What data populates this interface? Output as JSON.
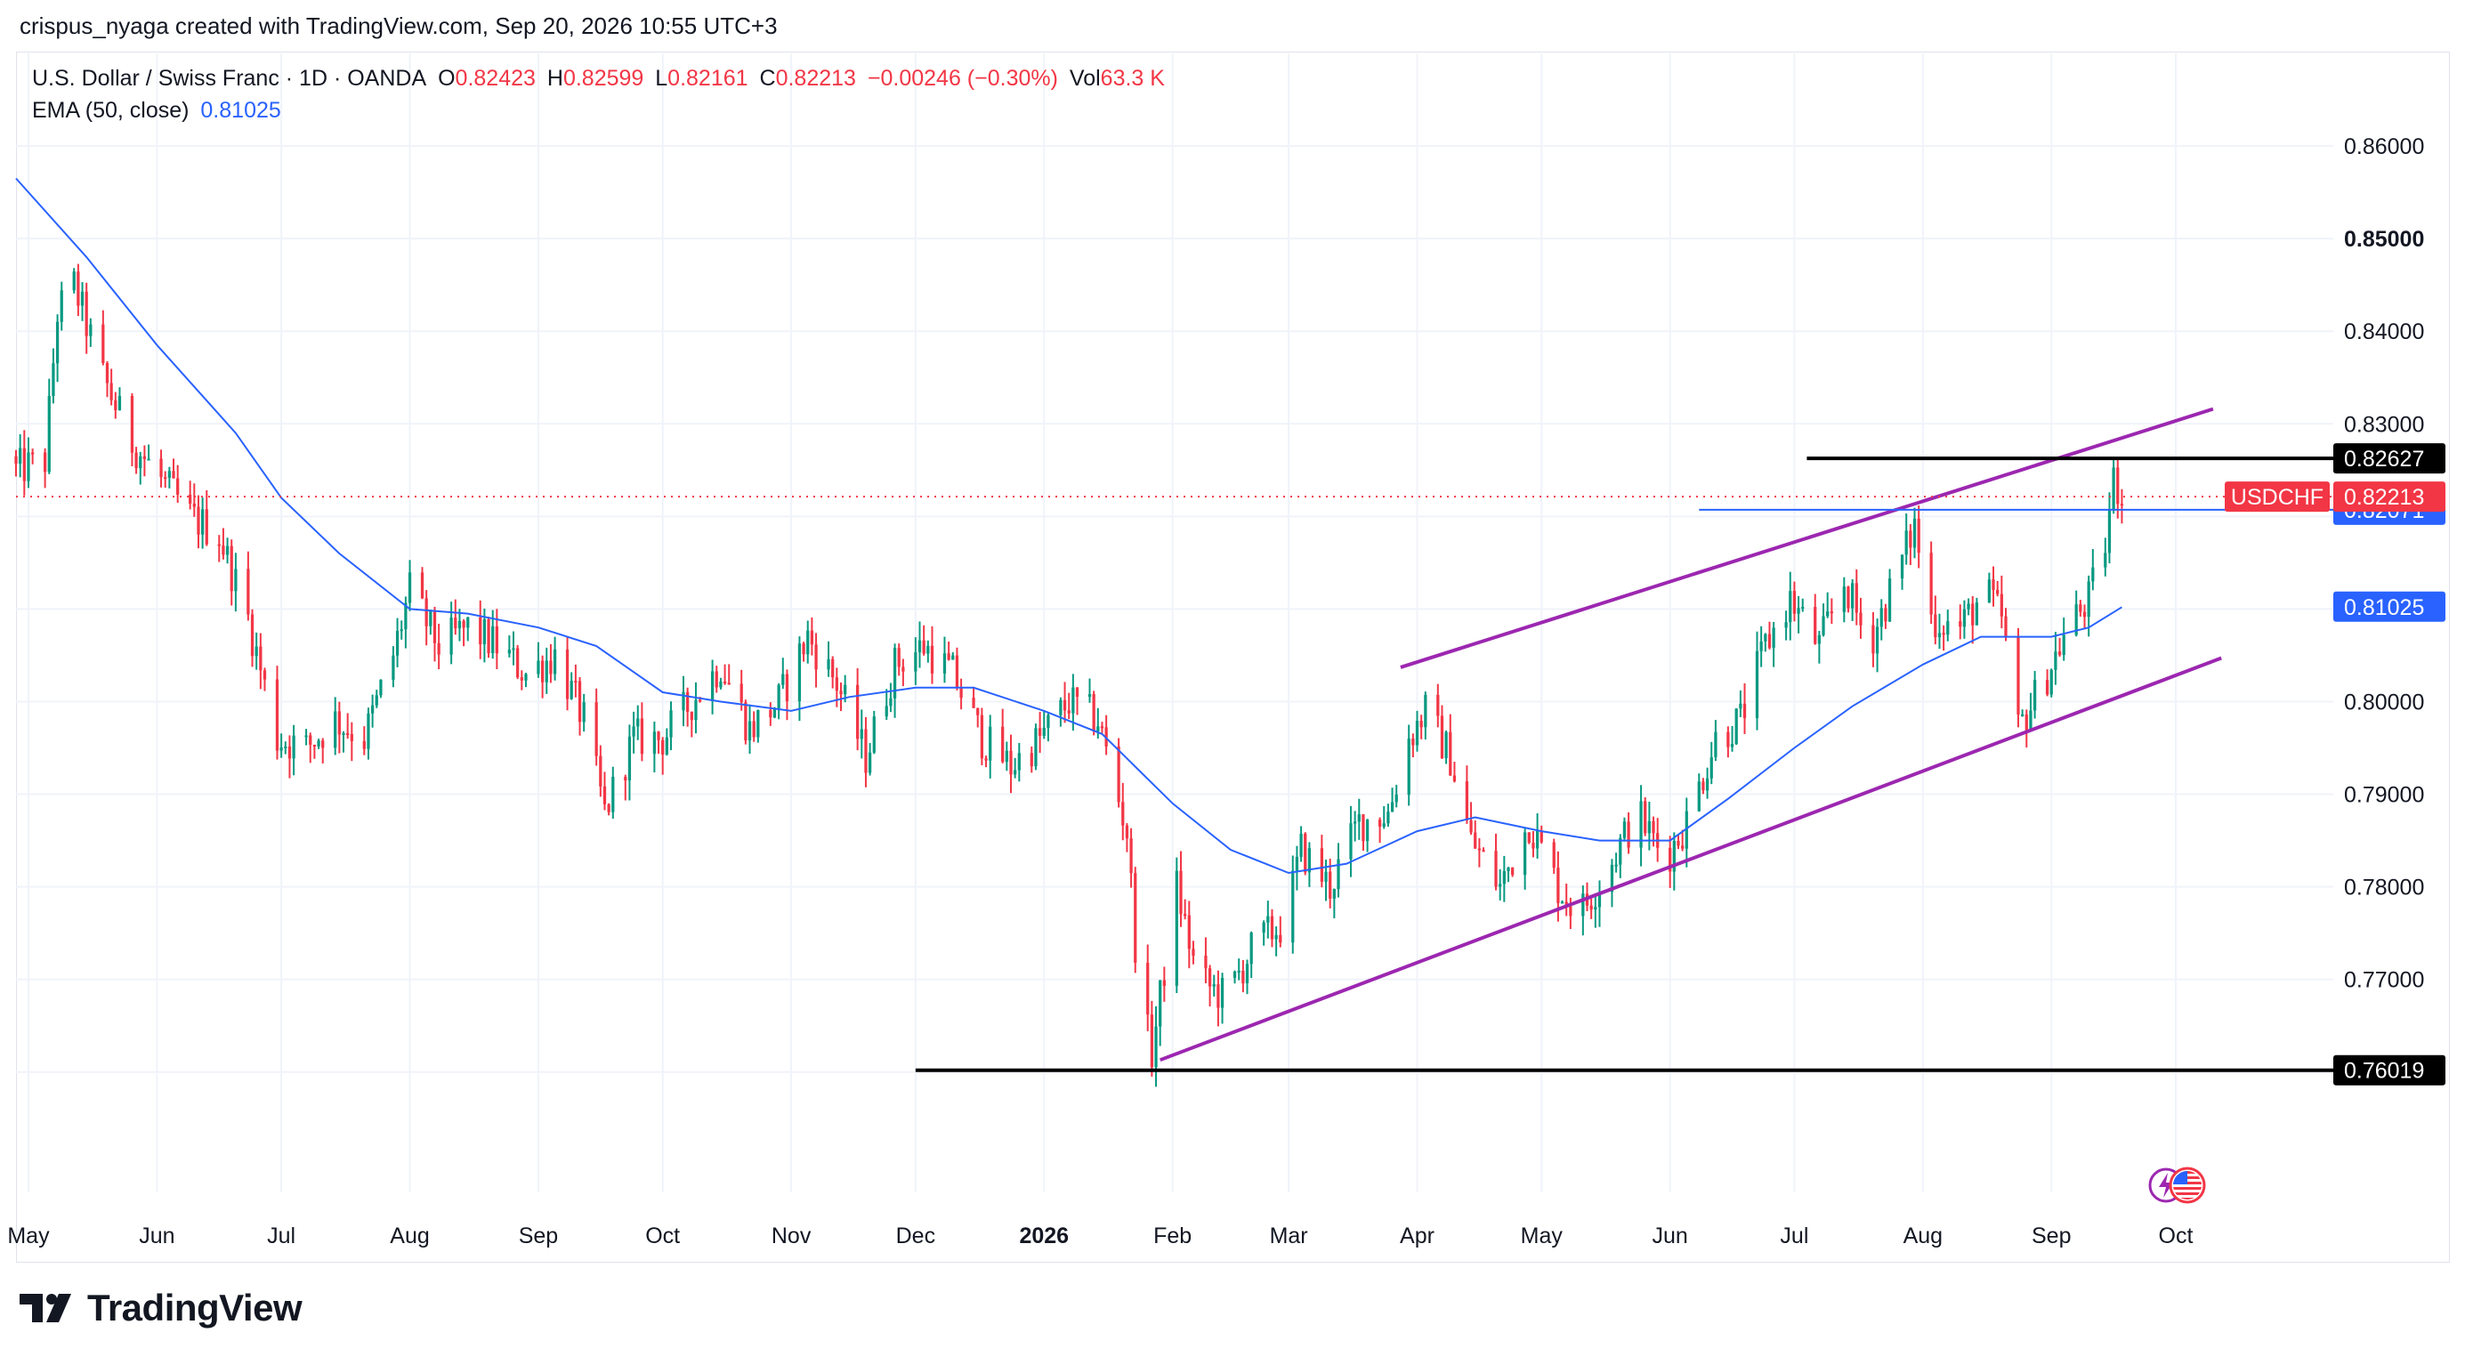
{
  "header": {
    "credit": "crispus_nyaga created with TradingView.com, Sep 20, 2026 10:55 UTC+3"
  },
  "legend": {
    "symbol": "U.S. Dollar / Swiss Franc · 1D · OANDA",
    "open_label": "O",
    "open": "0.82423",
    "high_label": "H",
    "high": "0.82599",
    "low_label": "L",
    "low": "0.82161",
    "close_label": "C",
    "close": "0.82213",
    "change": "−0.00246 (−0.30%)",
    "vol_label": "Vol",
    "vol": "63.3 K",
    "ema_label": "EMA (50, close)",
    "ema_value": "0.81025"
  },
  "brand": {
    "name": "TradingView"
  },
  "colors": {
    "up": "#089981",
    "down": "#f23645",
    "ema": "#2962ff",
    "channel": "#9c27b0",
    "level": "#000000",
    "grid": "#f0f3fa"
  },
  "chart_data": {
    "type": "candlestick",
    "symbol": "USDCHF",
    "y_axis": {
      "ticks": [
        0.76,
        0.77,
        0.78,
        0.79,
        0.8,
        0.81,
        0.82,
        0.83,
        0.84,
        0.85,
        0.86
      ],
      "tick_labels": [
        "0.76000",
        "0.77000",
        "0.78000",
        "0.79000",
        "0.80000",
        "0.81000",
        "0.82000",
        "0.83000",
        "0.84000",
        "0.85000",
        "0.86000"
      ],
      "bold_ticks": [
        "0.85000"
      ],
      "range": [
        0.747,
        0.87
      ]
    },
    "x_axis": {
      "labels": [
        {
          "text": "May",
          "date": "2025-05-01"
        },
        {
          "text": "Jun",
          "date": "2025-06-01"
        },
        {
          "text": "Jul",
          "date": "2025-07-01"
        },
        {
          "text": "Aug",
          "date": "2025-08-01"
        },
        {
          "text": "Sep",
          "date": "2025-09-01"
        },
        {
          "text": "Oct",
          "date": "2025-10-01"
        },
        {
          "text": "Nov",
          "date": "2025-11-01"
        },
        {
          "text": "Dec",
          "date": "2025-12-01"
        },
        {
          "text": "2026",
          "date": "2026-01-01",
          "bold": true
        },
        {
          "text": "Feb",
          "date": "2026-02-01"
        },
        {
          "text": "Mar",
          "date": "2026-03-01"
        },
        {
          "text": "Apr",
          "date": "2026-04-01"
        },
        {
          "text": "May",
          "date": "2026-05-01"
        },
        {
          "text": "Jun",
          "date": "2026-06-01"
        },
        {
          "text": "Jul",
          "date": "2026-07-01"
        },
        {
          "text": "Aug",
          "date": "2026-08-01"
        },
        {
          "text": "Sep",
          "date": "2026-09-01"
        },
        {
          "text": "Oct",
          "date": "2026-10-01"
        }
      ],
      "range": [
        "2025-04-28",
        "2026-11-08"
      ]
    },
    "close_path": [
      [
        "2025-04-28",
        0.825
      ],
      [
        "2025-05-05",
        0.826
      ],
      [
        "2025-05-08",
        0.842
      ],
      [
        "2025-05-12",
        0.845
      ],
      [
        "2025-05-19",
        0.835
      ],
      [
        "2025-05-26",
        0.828
      ],
      [
        "2025-06-02",
        0.824
      ],
      [
        "2025-06-09",
        0.82
      ],
      [
        "2025-06-16",
        0.818
      ],
      [
        "2025-06-23",
        0.809
      ],
      [
        "2025-06-30",
        0.796
      ],
      [
        "2025-07-07",
        0.795
      ],
      [
        "2025-07-14",
        0.798
      ],
      [
        "2025-07-21",
        0.796
      ],
      [
        "2025-07-28",
        0.805
      ],
      [
        "2025-08-01",
        0.812
      ],
      [
        "2025-08-08",
        0.806
      ],
      [
        "2025-08-15",
        0.808
      ],
      [
        "2025-08-22",
        0.806
      ],
      [
        "2025-08-29",
        0.803
      ],
      [
        "2025-09-05",
        0.805
      ],
      [
        "2025-09-12",
        0.798
      ],
      [
        "2025-09-17",
        0.788
      ],
      [
        "2025-09-24",
        0.796
      ],
      [
        "2025-10-01",
        0.796
      ],
      [
        "2025-10-08",
        0.8
      ],
      [
        "2025-10-15",
        0.804
      ],
      [
        "2025-10-22",
        0.797
      ],
      [
        "2025-10-29",
        0.8
      ],
      [
        "2025-11-05",
        0.807
      ],
      [
        "2025-11-12",
        0.802
      ],
      [
        "2025-11-19",
        0.794
      ],
      [
        "2025-11-26",
        0.804
      ],
      [
        "2025-12-03",
        0.806
      ],
      [
        "2025-12-10",
        0.803
      ],
      [
        "2025-12-17",
        0.796
      ],
      [
        "2025-12-24",
        0.793
      ],
      [
        "2025-12-31",
        0.796
      ],
      [
        "2026-01-07",
        0.8
      ],
      [
        "2026-01-14",
        0.798
      ],
      [
        "2026-01-21",
        0.786
      ],
      [
        "2026-01-24",
        0.768
      ],
      [
        "2026-01-27",
        0.762
      ],
      [
        "2026-02-02",
        0.78
      ],
      [
        "2026-02-07",
        0.77
      ],
      [
        "2026-02-14",
        0.768
      ],
      [
        "2026-02-21",
        0.774
      ],
      [
        "2026-02-28",
        0.776
      ],
      [
        "2026-03-04",
        0.784
      ],
      [
        "2026-03-11",
        0.78
      ],
      [
        "2026-03-18",
        0.787
      ],
      [
        "2026-03-25",
        0.788
      ],
      [
        "2026-03-30",
        0.796
      ],
      [
        "2026-04-03",
        0.799
      ],
      [
        "2026-04-09",
        0.794
      ],
      [
        "2026-04-14",
        0.785
      ],
      [
        "2026-04-21",
        0.78
      ],
      [
        "2026-04-28",
        0.787
      ],
      [
        "2026-05-05",
        0.78
      ],
      [
        "2026-05-10",
        0.777
      ],
      [
        "2026-05-17",
        0.782
      ],
      [
        "2026-05-24",
        0.788
      ],
      [
        "2026-05-31",
        0.783
      ],
      [
        "2026-06-05",
        0.787
      ],
      [
        "2026-06-12",
        0.796
      ],
      [
        "2026-06-18",
        0.798
      ],
      [
        "2026-06-24",
        0.806
      ],
      [
        "2026-06-30",
        0.811
      ],
      [
        "2026-07-07",
        0.806
      ],
      [
        "2026-07-13",
        0.813
      ],
      [
        "2026-07-19",
        0.806
      ],
      [
        "2026-07-25",
        0.813
      ],
      [
        "2026-07-30",
        0.819
      ],
      [
        "2026-08-03",
        0.809
      ],
      [
        "2026-08-10",
        0.808
      ],
      [
        "2026-08-16",
        0.812
      ],
      [
        "2026-08-20",
        0.809
      ],
      [
        "2026-08-24",
        0.797
      ],
      [
        "2026-08-31",
        0.803
      ],
      [
        "2026-09-05",
        0.808
      ],
      [
        "2026-09-10",
        0.811
      ],
      [
        "2026-09-14",
        0.817
      ],
      [
        "2026-09-16",
        0.824
      ],
      [
        "2026-09-18",
        0.8221
      ]
    ],
    "ema_path": [
      [
        "2025-04-28",
        0.8565
      ],
      [
        "2025-05-15",
        0.848
      ],
      [
        "2025-06-01",
        0.8385
      ],
      [
        "2025-06-20",
        0.829
      ],
      [
        "2025-07-01",
        0.822
      ],
      [
        "2025-07-15",
        0.816
      ],
      [
        "2025-08-01",
        0.81
      ],
      [
        "2025-08-15",
        0.8095
      ],
      [
        "2025-09-01",
        0.808
      ],
      [
        "2025-09-15",
        0.806
      ],
      [
        "2025-10-01",
        0.801
      ],
      [
        "2025-10-15",
        0.8
      ],
      [
        "2025-11-01",
        0.799
      ],
      [
        "2025-11-15",
        0.8005
      ],
      [
        "2025-12-01",
        0.8015
      ],
      [
        "2025-12-15",
        0.8015
      ],
      [
        "2026-01-01",
        0.799
      ],
      [
        "2026-01-15",
        0.7965
      ],
      [
        "2026-02-01",
        0.789
      ],
      [
        "2026-02-15",
        0.784
      ],
      [
        "2026-03-01",
        0.7815
      ],
      [
        "2026-03-15",
        0.7825
      ],
      [
        "2026-04-01",
        0.786
      ],
      [
        "2026-04-15",
        0.7875
      ],
      [
        "2026-05-01",
        0.786
      ],
      [
        "2026-05-15",
        0.785
      ],
      [
        "2026-06-01",
        0.785
      ],
      [
        "2026-06-15",
        0.7895
      ],
      [
        "2026-07-01",
        0.795
      ],
      [
        "2026-07-15",
        0.7995
      ],
      [
        "2026-08-01",
        0.804
      ],
      [
        "2026-08-15",
        0.807
      ],
      [
        "2026-09-01",
        0.807
      ],
      [
        "2026-09-10",
        0.808
      ],
      [
        "2026-09-18",
        0.8102
      ]
    ],
    "channel_upper": [
      [
        "2026-03-28",
        0.8037
      ],
      [
        "2026-10-10",
        0.8316
      ]
    ],
    "channel_lower": [
      [
        "2026-01-29",
        0.7613
      ],
      [
        "2026-10-12",
        0.8047
      ]
    ],
    "horizontal_levels": [
      {
        "value": 0.76019,
        "label": "0.76019",
        "from": "2025-12-01",
        "color": "#000000"
      },
      {
        "value": 0.82627,
        "label": "0.82627",
        "from": "2026-07-04",
        "color": "#000000"
      },
      {
        "value": 0.82071,
        "label": "0.82071",
        "from": "2026-06-08",
        "color": "#2962ff"
      }
    ],
    "last_price": {
      "value": 0.82213,
      "label": "0.82213",
      "symbol": "USDCHF",
      "color": "#f23645"
    },
    "ema_last": {
      "value": 0.81025,
      "label": "0.81025",
      "color": "#2962ff"
    },
    "grid": true
  }
}
